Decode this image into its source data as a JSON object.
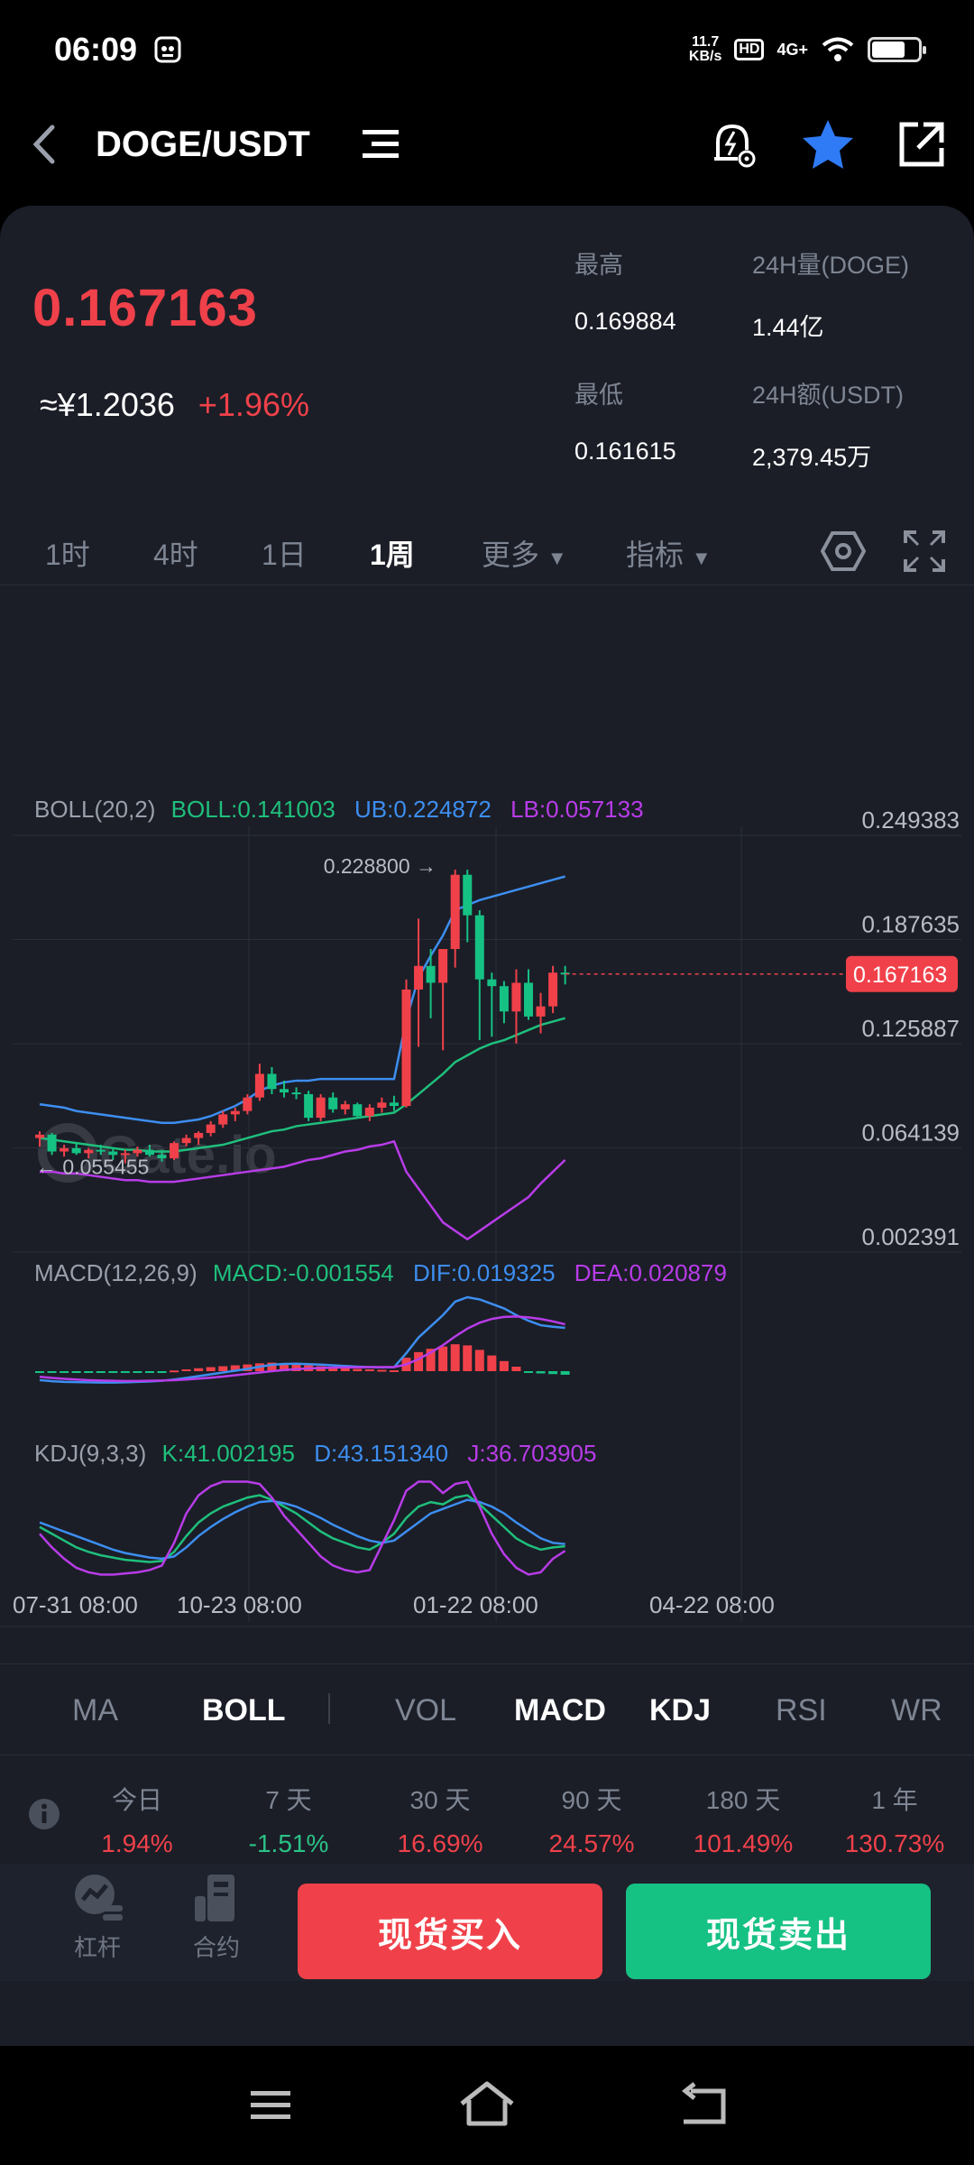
{
  "status_bar": {
    "time": "06:09",
    "net_speed_value": "11.7",
    "net_speed_unit": "KB/s",
    "hd": "HD",
    "signal": "4G+",
    "battery_fraction": 0.7
  },
  "header": {
    "title": "DOGE/USDT",
    "icons": [
      "back-arrow-icon",
      "menu-lines-icon",
      "price-alert-icon",
      "star-icon",
      "share-icon"
    ],
    "favorite_color": "#2f7bf5"
  },
  "ticker": {
    "price": "0.167163",
    "cny_price": "≈¥1.2036",
    "change": "+1.96%",
    "high_label": "最高",
    "high": "0.169884",
    "low_label": "最低",
    "low": "0.161615",
    "vol_label": "24H量(DOGE)",
    "vol": "1.44亿",
    "amount_label": "24H额(USDT)",
    "amount": "2,379.45万"
  },
  "timeframes": {
    "items": [
      "1时",
      "4时",
      "1日",
      "1周"
    ],
    "active": "1周",
    "more": "更多",
    "indicator": "指标"
  },
  "chart_data": [
    {
      "type": "candlestick",
      "watermark": "Gate.io",
      "ylim": [
        0.002391,
        0.249383
      ],
      "y_ticks": [
        "0.249383",
        "0.187635",
        "0.125887",
        "0.064139",
        "0.002391"
      ],
      "x_ticks": [
        "07-31 08:00",
        "10-23 08:00",
        "01-22 08:00",
        "04-22 08:00"
      ],
      "legend": {
        "name": "BOLL(20,2)",
        "boll": "BOLL:0.141003",
        "ub": "UB:0.224872",
        "lb": "LB:0.057133"
      },
      "max_label": "0.228800 →",
      "min_label": "← 0.055455",
      "last_price": "0.167163",
      "candles": [
        [
          0.07,
          0.074,
          0.065,
          0.072
        ],
        [
          0.072,
          0.073,
          0.06,
          0.062
        ],
        [
          0.062,
          0.066,
          0.059,
          0.064
        ],
        [
          0.064,
          0.067,
          0.06,
          0.061
        ],
        [
          0.061,
          0.064,
          0.058,
          0.063
        ],
        [
          0.063,
          0.066,
          0.06,
          0.062
        ],
        [
          0.062,
          0.064,
          0.057,
          0.06
        ],
        [
          0.06,
          0.063,
          0.055,
          0.061
        ],
        [
          0.061,
          0.065,
          0.059,
          0.063
        ],
        [
          0.063,
          0.066,
          0.059,
          0.06
        ],
        [
          0.06,
          0.063,
          0.056,
          0.058
        ],
        [
          0.058,
          0.068,
          0.057,
          0.067
        ],
        [
          0.067,
          0.072,
          0.065,
          0.07
        ],
        [
          0.07,
          0.074,
          0.066,
          0.073
        ],
        [
          0.073,
          0.08,
          0.071,
          0.078
        ],
        [
          0.078,
          0.086,
          0.076,
          0.084
        ],
        [
          0.084,
          0.088,
          0.08,
          0.086
        ],
        [
          0.086,
          0.096,
          0.084,
          0.094
        ],
        [
          0.094,
          0.114,
          0.092,
          0.108
        ],
        [
          0.108,
          0.112,
          0.096,
          0.099
        ],
        [
          0.099,
          0.104,
          0.094,
          0.097
        ],
        [
          0.097,
          0.1,
          0.093,
          0.096
        ],
        [
          0.096,
          0.098,
          0.08,
          0.082
        ],
        [
          0.082,
          0.096,
          0.08,
          0.094
        ],
        [
          0.094,
          0.097,
          0.085,
          0.087
        ],
        [
          0.087,
          0.092,
          0.084,
          0.09
        ],
        [
          0.09,
          0.091,
          0.082,
          0.083
        ],
        [
          0.083,
          0.09,
          0.08,
          0.088
        ],
        [
          0.088,
          0.094,
          0.085,
          0.091
        ],
        [
          0.091,
          0.095,
          0.086,
          0.089
        ],
        [
          0.089,
          0.164,
          0.088,
          0.158
        ],
        [
          0.158,
          0.2,
          0.124,
          0.172
        ],
        [
          0.172,
          0.182,
          0.141,
          0.162
        ],
        [
          0.162,
          0.181,
          0.122,
          0.182
        ],
        [
          0.182,
          0.229,
          0.171,
          0.226
        ],
        [
          0.226,
          0.229,
          0.186,
          0.202
        ],
        [
          0.202,
          0.205,
          0.128,
          0.164
        ],
        [
          0.164,
          0.168,
          0.13,
          0.16
        ],
        [
          0.16,
          0.163,
          0.138,
          0.145
        ],
        [
          0.145,
          0.17,
          0.126,
          0.162
        ],
        [
          0.162,
          0.17,
          0.14,
          0.142
        ],
        [
          0.142,
          0.156,
          0.132,
          0.148
        ],
        [
          0.148,
          0.172,
          0.144,
          0.168
        ],
        [
          0.168,
          0.172,
          0.161,
          0.167
        ]
      ],
      "boll_ub": [
        0.09,
        0.089,
        0.088,
        0.086,
        0.085,
        0.084,
        0.083,
        0.082,
        0.081,
        0.08,
        0.079,
        0.079,
        0.08,
        0.081,
        0.083,
        0.086,
        0.089,
        0.093,
        0.098,
        0.101,
        0.103,
        0.104,
        0.104,
        0.105,
        0.105,
        0.105,
        0.105,
        0.105,
        0.105,
        0.105,
        0.14,
        0.165,
        0.178,
        0.19,
        0.205,
        0.208,
        0.211,
        0.213,
        0.215,
        0.217,
        0.219,
        0.221,
        0.223,
        0.225
      ],
      "boll_mid": [
        0.07,
        0.069,
        0.068,
        0.067,
        0.066,
        0.065,
        0.064,
        0.063,
        0.063,
        0.062,
        0.062,
        0.062,
        0.063,
        0.064,
        0.065,
        0.066,
        0.068,
        0.07,
        0.072,
        0.074,
        0.075,
        0.077,
        0.078,
        0.079,
        0.08,
        0.081,
        0.082,
        0.083,
        0.084,
        0.085,
        0.09,
        0.096,
        0.102,
        0.108,
        0.115,
        0.119,
        0.123,
        0.126,
        0.128,
        0.131,
        0.134,
        0.137,
        0.139,
        0.141
      ],
      "boll_lb": [
        0.05,
        0.05,
        0.049,
        0.049,
        0.048,
        0.047,
        0.046,
        0.045,
        0.045,
        0.044,
        0.044,
        0.044,
        0.045,
        0.046,
        0.047,
        0.048,
        0.049,
        0.05,
        0.051,
        0.052,
        0.053,
        0.055,
        0.057,
        0.058,
        0.06,
        0.062,
        0.063,
        0.065,
        0.066,
        0.068,
        0.05,
        0.04,
        0.03,
        0.02,
        0.015,
        0.01,
        0.015,
        0.02,
        0.025,
        0.03,
        0.035,
        0.043,
        0.05,
        0.057
      ]
    },
    {
      "type": "bar",
      "legend": {
        "name": "MACD(12,26,9)",
        "macd": "MACD:-0.001554",
        "dif": "DIF:0.019325",
        "dea": "DEA:0.020879"
      },
      "hist": [
        -0.0005,
        -0.0006,
        -0.0006,
        -0.0005,
        -0.0005,
        -0.0005,
        -0.0004,
        -0.0004,
        -0.0003,
        -0.0003,
        -0.0002,
        0.0003,
        0.0008,
        0.0013,
        0.0018,
        0.0022,
        0.0026,
        0.003,
        0.0035,
        0.0038,
        0.0036,
        0.0032,
        0.0026,
        0.0022,
        0.0018,
        0.0014,
        0.001,
        0.0008,
        0.0006,
        0.0004,
        0.006,
        0.0085,
        0.01,
        0.011,
        0.012,
        0.0115,
        0.0095,
        0.007,
        0.0045,
        0.002,
        -0.0005,
        -0.001,
        -0.0013,
        -0.0016
      ],
      "dif": [
        -0.004,
        -0.0045,
        -0.0048,
        -0.0049,
        -0.005,
        -0.0051,
        -0.0051,
        -0.005,
        -0.0048,
        -0.0046,
        -0.0043,
        -0.0037,
        -0.003,
        -0.0022,
        -0.0014,
        -0.0006,
        0.0002,
        0.001,
        0.002,
        0.0028,
        0.0032,
        0.0033,
        0.0031,
        0.0029,
        0.0026,
        0.0023,
        0.002,
        0.0018,
        0.0017,
        0.0018,
        0.008,
        0.015,
        0.02,
        0.025,
        0.031,
        0.033,
        0.032,
        0.03,
        0.028,
        0.025,
        0.0225,
        0.0205,
        0.0198,
        0.0193
      ],
      "dea": [
        -0.0025,
        -0.003,
        -0.0034,
        -0.0037,
        -0.004,
        -0.0042,
        -0.0043,
        -0.0044,
        -0.0044,
        -0.0043,
        -0.0042,
        -0.004,
        -0.0037,
        -0.0033,
        -0.0029,
        -0.0024,
        -0.0018,
        -0.0012,
        -0.0006,
        0.0,
        0.0005,
        0.0009,
        0.0012,
        0.0014,
        0.0016,
        0.0017,
        0.0017,
        0.0018,
        0.0018,
        0.0018,
        0.003,
        0.0054,
        0.0083,
        0.0116,
        0.0155,
        0.019,
        0.0216,
        0.0233,
        0.0242,
        0.0244,
        0.024,
        0.0233,
        0.0222,
        0.0209
      ]
    },
    {
      "type": "line",
      "legend": {
        "name": "KDJ(9,3,3)",
        "k": "K:41.002195",
        "d": "D:43.151340",
        "j": "J:36.703905"
      },
      "k": [
        58,
        52,
        46,
        40,
        36,
        33,
        31,
        29,
        28,
        27,
        28,
        36,
        50,
        62,
        70,
        76,
        80,
        84,
        86,
        82,
        76,
        70,
        62,
        54,
        48,
        44,
        40,
        38,
        44,
        52,
        66,
        76,
        80,
        78,
        84,
        86,
        78,
        68,
        58,
        48,
        42,
        38,
        40,
        41
      ],
      "d": [
        62,
        58,
        54,
        50,
        46,
        42,
        38,
        35,
        33,
        31,
        30,
        32,
        40,
        50,
        58,
        65,
        71,
        76,
        80,
        81,
        79,
        76,
        71,
        66,
        60,
        55,
        50,
        46,
        44,
        46,
        54,
        62,
        70,
        74,
        78,
        82,
        80,
        76,
        70,
        62,
        55,
        48,
        44,
        43
      ],
      "j": [
        52,
        40,
        30,
        22,
        18,
        16,
        16,
        17,
        18,
        20,
        24,
        44,
        70,
        86,
        94,
        98,
        98,
        98,
        96,
        84,
        68,
        56,
        44,
        32,
        24,
        20,
        18,
        20,
        42,
        64,
        90,
        98,
        98,
        88,
        96,
        98,
        76,
        52,
        34,
        22,
        16,
        18,
        30,
        37
      ]
    }
  ],
  "indicator_tabs": {
    "main": [
      "MA",
      "BOLL"
    ],
    "sub": [
      "VOL",
      "MACD",
      "KDJ",
      "RSI",
      "WR"
    ],
    "active": [
      "BOLL",
      "MACD",
      "KDJ"
    ]
  },
  "performance": [
    {
      "label": "今日",
      "value": "1.94%",
      "dir": "up"
    },
    {
      "label": "7 天",
      "value": "-1.51%",
      "dir": "down"
    },
    {
      "label": "30 天",
      "value": "16.69%",
      "dir": "up"
    },
    {
      "label": "90 天",
      "value": "24.57%",
      "dir": "up"
    },
    {
      "label": "180 天",
      "value": "101.49%",
      "dir": "up"
    },
    {
      "label": "1 年",
      "value": "130.73%",
      "dir": "up"
    }
  ],
  "bottom": {
    "leverage": "杠杆",
    "contract": "合约",
    "buy": "现货买入",
    "sell": "现货卖出"
  },
  "colors": {
    "up": "#f0414a",
    "down": "#16c184",
    "ub": "#3d8ef0",
    "mid": "#1fbf7c",
    "lb": "#b83ce8",
    "bg": "#1b1e27"
  }
}
